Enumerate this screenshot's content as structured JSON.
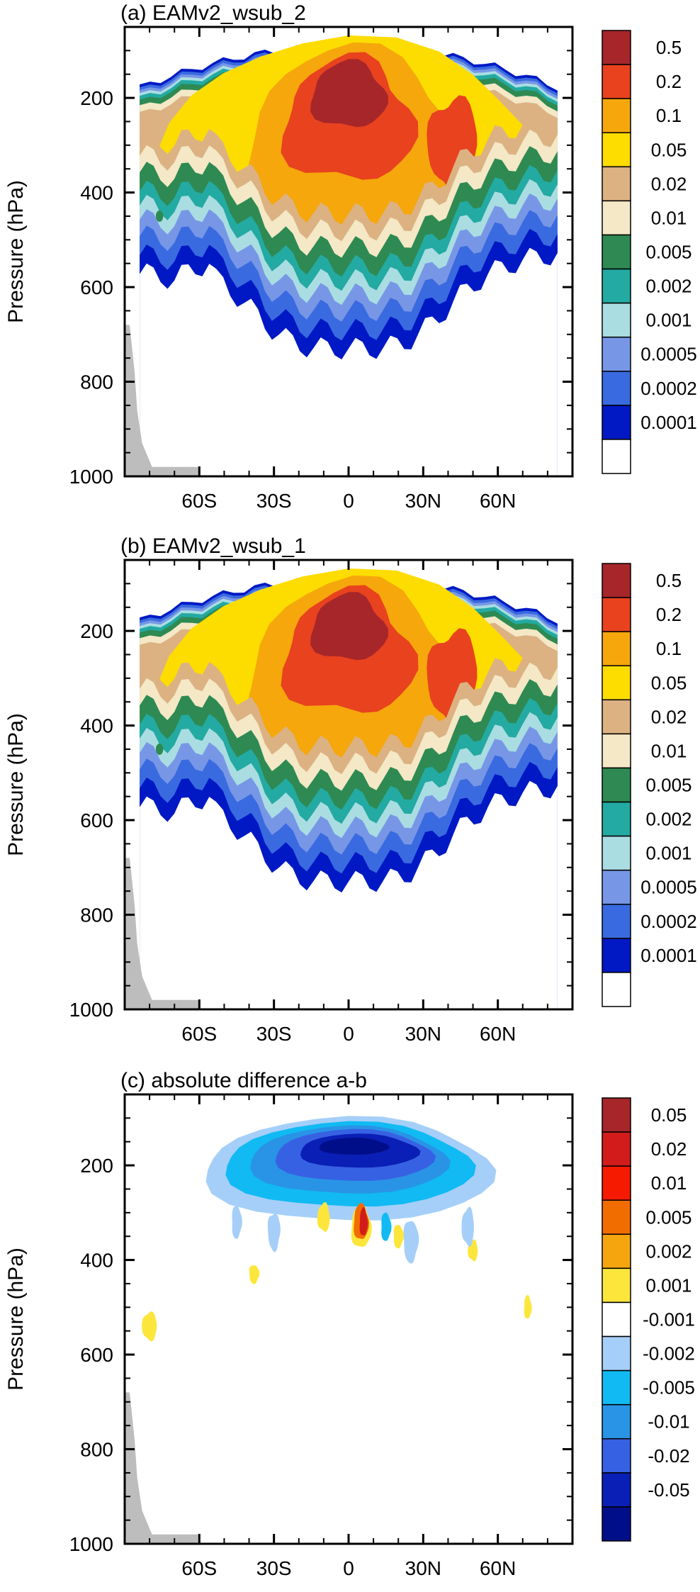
{
  "chart_data": [
    {
      "type": "contour",
      "title": "(a) EAMv2_wsub_2",
      "xlabel": "",
      "ylabel": "Pressure (hPa)",
      "x_ticks": [
        "60S",
        "30S",
        "0",
        "30N",
        "60N"
      ],
      "y_ticks": [
        "200",
        "400",
        "600",
        "800",
        "1000"
      ],
      "xlim": [
        -90,
        90
      ],
      "ylim": [
        1000,
        50
      ],
      "colorbar": [
        "0.5",
        "0.2",
        "0.1",
        "0.05",
        "0.02",
        "0.01",
        "0.005",
        "0.002",
        "0.001",
        "0.0005",
        "0.0002",
        "0.0001"
      ],
      "colors": [
        "#a6262a",
        "#e8421e",
        "#f5a70c",
        "#fddc00",
        "#dcb283",
        "#f4e8c6",
        "#2e8a52",
        "#23aaa2",
        "#aadde2",
        "#7797e6",
        "#3a6ae0",
        "#0019c4",
        "#ffffff"
      ]
    },
    {
      "type": "contour",
      "title": "(b) EAMv2_wsub_1",
      "xlabel": "",
      "ylabel": "Pressure (hPa)",
      "x_ticks": [
        "60S",
        "30S",
        "0",
        "30N",
        "60N"
      ],
      "y_ticks": [
        "200",
        "400",
        "600",
        "800",
        "1000"
      ],
      "xlim": [
        -90,
        90
      ],
      "ylim": [
        1000,
        50
      ],
      "colorbar": [
        "0.5",
        "0.2",
        "0.1",
        "0.05",
        "0.02",
        "0.01",
        "0.005",
        "0.002",
        "0.001",
        "0.0005",
        "0.0002",
        "0.0001"
      ],
      "colors": [
        "#a6262a",
        "#e8421e",
        "#f5a70c",
        "#fddc00",
        "#dcb283",
        "#f4e8c6",
        "#2e8a52",
        "#23aaa2",
        "#aadde2",
        "#7797e6",
        "#3a6ae0",
        "#0019c4",
        "#ffffff"
      ]
    },
    {
      "type": "contour",
      "title": "(c) absolute difference a-b",
      "xlabel": "",
      "ylabel": "Pressure (hPa)",
      "x_ticks": [
        "60S",
        "30S",
        "0",
        "30N",
        "60N"
      ],
      "y_ticks": [
        "200",
        "400",
        "600",
        "800",
        "1000"
      ],
      "xlim": [
        -90,
        90
      ],
      "ylim": [
        1000,
        50
      ],
      "colorbar": [
        "0.05",
        "0.02",
        "0.01",
        "0.005",
        "0.002",
        "0.001",
        "-0.001",
        "-0.002",
        "-0.005",
        "-0.01",
        "-0.02",
        "-0.05"
      ],
      "colors": [
        "#a6262a",
        "#d21c1c",
        "#f51a00",
        "#f26d00",
        "#f5a60e",
        "#fde63c",
        "#ffffff",
        "#a5cff8",
        "#11baf2",
        "#2994e6",
        "#3761e3",
        "#0a1fb5",
        "#000f89"
      ]
    }
  ]
}
